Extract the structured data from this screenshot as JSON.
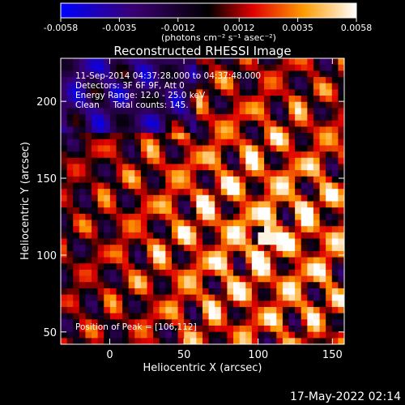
{
  "chart_data": {
    "type": "heatmap",
    "title": "Reconstructed RHESSI Image",
    "xlabel": "Heliocentric X (arcsec)",
    "ylabel": "Heliocentric Y (arcsec)",
    "xlim": [
      -33,
      158
    ],
    "ylim": [
      42,
      228
    ],
    "x_ticks": [
      0,
      50,
      100,
      150
    ],
    "y_ticks": [
      50,
      100,
      150,
      200
    ],
    "colorbar": {
      "vmin": -0.0058,
      "vmax": 0.0058,
      "ticks": [
        "-0.0058",
        "-0.0035",
        "-0.0012",
        "0.0012",
        "0.0035",
        "0.0058"
      ],
      "unit_label": "(photons cm⁻² s⁻¹ asec⁻²)",
      "colors": [
        "#0000ff",
        "#4b0082",
        "#000000",
        "#ff0000",
        "#ffd700",
        "#ffffff"
      ]
    },
    "peak": {
      "x": 106,
      "y": 112
    },
    "total_counts": 145
  },
  "annotations": {
    "line1": "11-Sep-2014 04:37:28.000 to 04:37:48.000",
    "line2": "Detectors: 3F 6F 9F, Att 0",
    "line3": "Energy Range: 12.0 - 25.0 keV",
    "line4": "Clean     Total counts: 145.",
    "peak_text": "Position of Peak = [106,112]"
  },
  "footer": {
    "date": "17-May-2022 02:14"
  }
}
